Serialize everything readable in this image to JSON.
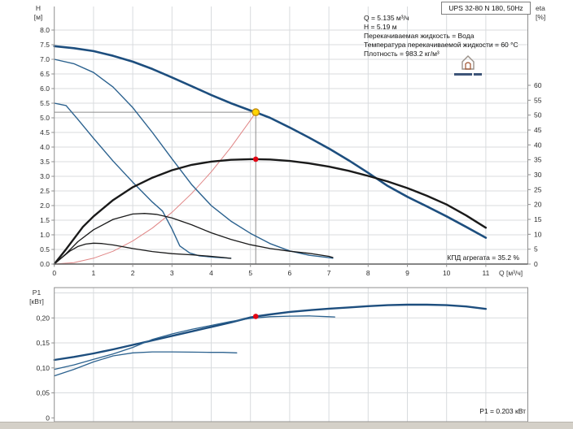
{
  "header": {
    "title": "UPS 32-80 N 180, 50Hz"
  },
  "info_lines": [
    "Q = 5.135 м³/ч",
    "H = 5.19 м",
    "Перекачиваемая жидкость = Вода",
    "Температура перекачиваемой жидкости = 60 °C",
    "Плотность = 983.2 кг/м³"
  ],
  "annotations": {
    "efficiency": "КПД агрегата = 35.2 %",
    "power": "P1 = 0.203 кВт"
  },
  "axes": {
    "h_axis": {
      "title": "H",
      "unit": "[м]",
      "tick_labels": [
        "8.0",
        "7.5",
        "7.0",
        "6.5",
        "6.0",
        "5.5",
        "5.0",
        "4.5",
        "4.0",
        "3.5",
        "3.0",
        "2.5",
        "2.0",
        "1.5",
        "1.0",
        "0.5",
        "0.0"
      ]
    },
    "eta_axis": {
      "title": "eta",
      "unit": "[%]",
      "tick_labels": [
        "60",
        "55",
        "50",
        "45",
        "40",
        "35",
        "30",
        "25",
        "20",
        "15",
        "10",
        "5",
        "0"
      ]
    },
    "q_axis": {
      "title": "Q [м³/ч]",
      "tick_labels": [
        "0",
        "1",
        "2",
        "3",
        "4",
        "5",
        "6",
        "7",
        "8",
        "9",
        "10",
        "11"
      ]
    },
    "p1_axis": {
      "title": "P1",
      "unit": "[кВт]",
      "tick_labels": [
        "0,20",
        "0,15",
        "0,10",
        "0,05",
        "0"
      ]
    }
  },
  "colors": {
    "head_thick": "#1d4e7e",
    "head_thin": "#2c628f",
    "eta_black": "#1a1a1a",
    "system_red": "#e08585",
    "marker_red": "#e30613",
    "marker_yellow": "#ffd400",
    "marker_yellow_edge": "#c08a10",
    "grid": "#d8dbde",
    "axis_line": "#8f8f8f",
    "axis_dark": "#5f5f5f",
    "crosshair": "#8c8c8c"
  },
  "chart_data": [
    {
      "type": "line",
      "title": "UPS 32-80 N 180, 50Hz",
      "xlabel": "Q [м³/ч]",
      "ylabel": "H [м]",
      "ylabel_right": "eta [%]",
      "xlim": [
        0,
        12.06
      ],
      "ylim": [
        0,
        8.8
      ],
      "ylim_right": [
        0,
        62
      ],
      "grid": true,
      "operating_point": {
        "Q": 5.135,
        "H": 5.19,
        "eta": 35.2
      },
      "series": [
        {
          "name": "head-speed3",
          "axis": "H",
          "width": 2.6,
          "colorKey": "head_thick",
          "x": [
            0,
            0.5,
            1,
            1.5,
            2,
            2.5,
            3,
            3.5,
            4,
            4.5,
            5,
            5.135,
            5.5,
            6,
            6.5,
            7,
            7.5,
            8,
            8.5,
            9,
            9.5,
            10,
            10.5,
            11
          ],
          "y": [
            7.45,
            7.38,
            7.28,
            7.12,
            6.92,
            6.67,
            6.38,
            6.08,
            5.78,
            5.5,
            5.25,
            5.19,
            5.0,
            4.67,
            4.32,
            3.95,
            3.55,
            3.12,
            2.67,
            2.3,
            1.97,
            1.63,
            1.27,
            0.9
          ]
        },
        {
          "name": "head-speed2",
          "axis": "H",
          "width": 1.4,
          "colorKey": "head_thin",
          "x": [
            0,
            0.5,
            1,
            1.5,
            2,
            2.5,
            3,
            3.5,
            4,
            4.5,
            5,
            5.5,
            6,
            6.5,
            7,
            7.1
          ],
          "y": [
            7.0,
            6.85,
            6.55,
            6.05,
            5.35,
            4.5,
            3.6,
            2.72,
            2.0,
            1.47,
            1.05,
            0.7,
            0.45,
            0.3,
            0.22,
            0.2
          ]
        },
        {
          "name": "head-speed1",
          "axis": "H",
          "width": 1.4,
          "colorKey": "head_thin",
          "x": [
            0,
            0.3,
            0.6,
            1,
            1.5,
            2,
            2.5,
            2.76,
            3,
            3.2,
            3.45,
            3.7,
            4.1,
            4.5
          ],
          "y": [
            5.5,
            5.42,
            4.95,
            4.3,
            3.52,
            2.8,
            2.12,
            1.81,
            1.2,
            0.62,
            0.38,
            0.28,
            0.23,
            0.2
          ]
        },
        {
          "name": "eta-speed3",
          "axis": "eta",
          "width": 2.4,
          "colorKey": "eta_black",
          "x": [
            0,
            0.3,
            0.73,
            1,
            1.5,
            2,
            2.5,
            3,
            3.5,
            4,
            4.5,
            5,
            5.135,
            5.5,
            6,
            6.5,
            7,
            7.5,
            8,
            8.5,
            9,
            9.5,
            10,
            10.5,
            11
          ],
          "y": [
            0,
            5,
            12.5,
            16,
            21.5,
            25.8,
            29,
            31.5,
            33.3,
            34.4,
            35.0,
            35.2,
            35.2,
            35.1,
            34.6,
            33.8,
            32.7,
            31.3,
            29.6,
            27.7,
            25.5,
            22.9,
            20.0,
            16.3,
            12.2
          ]
        },
        {
          "name": "eta-speed2",
          "axis": "eta",
          "width": 1.3,
          "colorKey": "eta_black",
          "x": [
            0,
            0.3,
            0.6,
            1,
            1.5,
            2,
            2.3,
            2.6,
            3,
            3.5,
            4,
            4.5,
            5,
            5.5,
            6,
            6.5,
            7,
            7.1
          ],
          "y": [
            0,
            3.5,
            7.5,
            11.5,
            15,
            16.8,
            17.0,
            16.7,
            15.5,
            13.2,
            10.5,
            8.3,
            6.5,
            5.2,
            4.3,
            3.6,
            2.6,
            2.2
          ]
        },
        {
          "name": "eta-speed1",
          "axis": "eta",
          "width": 1.3,
          "colorKey": "eta_black",
          "x": [
            0,
            0.2,
            0.4,
            0.6,
            0.8,
            1,
            1.2,
            1.5,
            2,
            2.5,
            3,
            3.5,
            4,
            4.3,
            4.5
          ],
          "y": [
            0,
            2.2,
            4.4,
            5.9,
            6.7,
            7.0,
            6.9,
            6.4,
            5.2,
            4.2,
            3.5,
            3.1,
            2.6,
            2.2,
            1.9
          ]
        },
        {
          "name": "system-curve",
          "axis": "H",
          "width": 1,
          "colorKey": "system_red",
          "x": [
            0,
            0.5,
            1,
            1.5,
            2,
            2.5,
            3,
            3.5,
            4,
            4.5,
            5,
            5.135
          ],
          "y": [
            0,
            0.05,
            0.2,
            0.44,
            0.79,
            1.23,
            1.77,
            2.41,
            3.15,
            3.99,
            4.92,
            5.19
          ]
        }
      ]
    },
    {
      "type": "line",
      "xlabel": "",
      "ylabel": "P1 [кВт]",
      "xlim": [
        0,
        12.06
      ],
      "ylim": [
        0,
        0.26
      ],
      "grid": true,
      "operating_point": {
        "Q": 5.135,
        "P1": 0.203
      },
      "series": [
        {
          "name": "p1-speed3",
          "axis": "P",
          "width": 2.4,
          "colorKey": "head_thick",
          "x": [
            0,
            0.5,
            1,
            1.5,
            2,
            2.5,
            3,
            3.5,
            4,
            4.5,
            5,
            5.135,
            5.5,
            6,
            6.5,
            7,
            7.5,
            8,
            8.5,
            9,
            9.5,
            10,
            10.5,
            11
          ],
          "y": [
            0.116,
            0.122,
            0.129,
            0.137,
            0.146,
            0.155,
            0.164,
            0.173,
            0.182,
            0.191,
            0.201,
            0.203,
            0.207,
            0.212,
            0.2155,
            0.2185,
            0.221,
            0.2235,
            0.2255,
            0.2265,
            0.2265,
            0.2255,
            0.223,
            0.218
          ]
        },
        {
          "name": "p1-speed2",
          "axis": "P",
          "width": 1.3,
          "colorKey": "head_thin",
          "x": [
            0,
            0.5,
            1,
            1.5,
            2,
            2.5,
            3,
            3.5,
            4,
            4.5,
            5,
            5.135,
            5.5,
            6,
            6.5,
            7,
            7.15
          ],
          "y": [
            0.097,
            0.106,
            0.117,
            0.128,
            0.141,
            0.157,
            0.168,
            0.177,
            0.185,
            0.193,
            0.199,
            0.2,
            0.2025,
            0.2035,
            0.204,
            0.2025,
            0.202
          ]
        },
        {
          "name": "p1-speed1",
          "axis": "P",
          "width": 1.3,
          "colorKey": "head_thin",
          "x": [
            0,
            0.5,
            1,
            1.5,
            2,
            2.5,
            3,
            3.5,
            4,
            4.3,
            4.65
          ],
          "y": [
            0.084,
            0.097,
            0.112,
            0.124,
            0.13,
            0.132,
            0.132,
            0.1315,
            0.131,
            0.131,
            0.13
          ]
        }
      ]
    }
  ]
}
